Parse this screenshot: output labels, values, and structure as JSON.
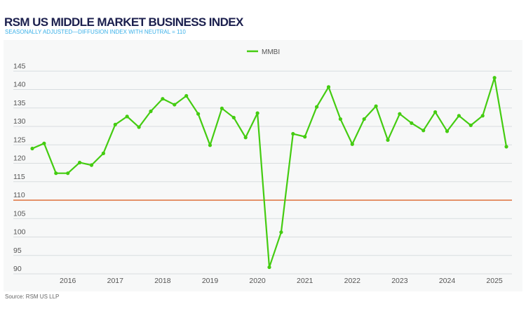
{
  "title": "RSM US MIDDLE MARKET BUSINESS INDEX",
  "subtitle": "SEASONALLY ADJUSTED—DIFFUSION INDEX WITH NEUTRAL = 110",
  "source": "Source: RSM US LLP",
  "chart_data": {
    "type": "line",
    "title": "RSM US MIDDLE MARKET BUSINESS INDEX",
    "subtitle": "SEASONALLY ADJUSTED—DIFFUSION INDEX WITH NEUTRAL = 110",
    "xlabel": "",
    "ylabel": "",
    "ylim": [
      90,
      145
    ],
    "yticks": [
      145,
      140,
      135,
      130,
      125,
      120,
      115,
      110,
      105,
      100,
      95,
      90
    ],
    "xtick_labels": [
      "2016",
      "2017",
      "2018",
      "2019",
      "2020",
      "2021",
      "2022",
      "2023",
      "2024",
      "2025"
    ],
    "x": [
      "2015Q2",
      "2015Q3",
      "2015Q4",
      "2016Q1",
      "2016Q2",
      "2016Q3",
      "2016Q4",
      "2017Q1",
      "2017Q2",
      "2017Q3",
      "2017Q4",
      "2018Q1",
      "2018Q2",
      "2018Q3",
      "2018Q4",
      "2019Q1",
      "2019Q2",
      "2019Q3",
      "2019Q4",
      "2020Q1",
      "2020Q2",
      "2020Q3",
      "2020Q4",
      "2021Q1",
      "2021Q2",
      "2021Q3",
      "2021Q4",
      "2022Q1",
      "2022Q2",
      "2022Q3",
      "2022Q4",
      "2023Q1",
      "2023Q2",
      "2023Q3",
      "2023Q4",
      "2024Q1",
      "2024Q2",
      "2024Q3",
      "2024Q4",
      "2025Q1",
      "2025Q2"
    ],
    "series": [
      {
        "name": "MMBI",
        "color": "#44cc11",
        "values": [
          124.0,
          125.4,
          117.3,
          117.3,
          120.2,
          119.5,
          122.7,
          130.5,
          132.7,
          129.8,
          134.1,
          137.5,
          135.9,
          138.3,
          133.4,
          124.9,
          134.9,
          132.4,
          127.0,
          133.6,
          91.8,
          101.3,
          128.0,
          127.2,
          135.3,
          140.7,
          132.0,
          125.2,
          132.0,
          135.5,
          126.3,
          133.4,
          130.9,
          128.9,
          133.9,
          128.7,
          132.9,
          130.3,
          132.9,
          143.2,
          124.5
        ]
      }
    ],
    "reference_line": {
      "value": 110,
      "color": "#e07a4a"
    },
    "grid": true,
    "legend": "top-center"
  }
}
